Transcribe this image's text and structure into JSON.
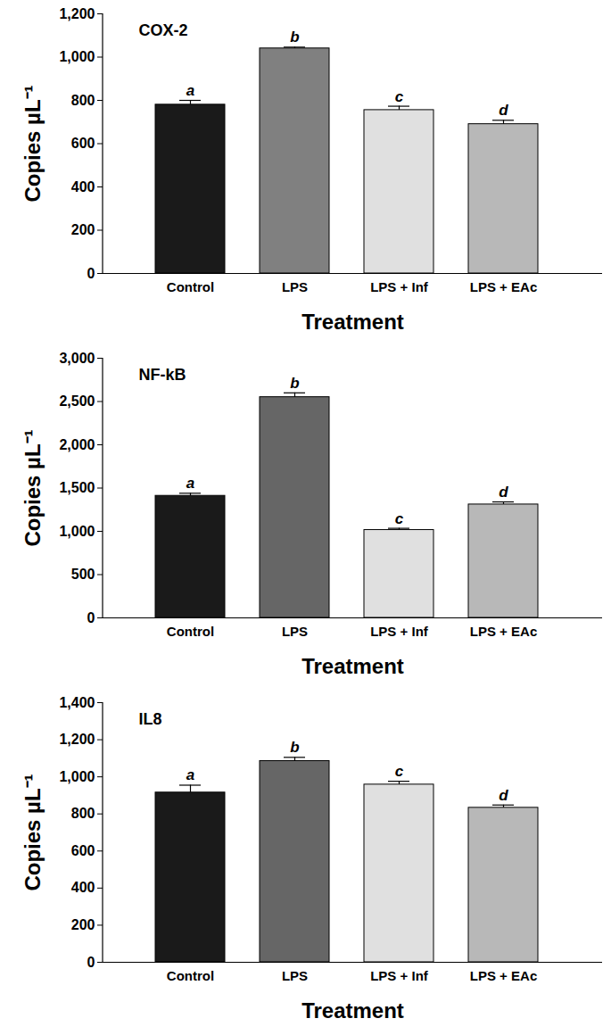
{
  "chart_data": [
    {
      "type": "bar",
      "title": "COX-2",
      "x_label": "Treatment",
      "y_label": "Copies µL⁻¹",
      "categories": [
        "Control",
        "LPS",
        "LPS + Inf",
        "LPS + EAc"
      ],
      "values": [
        780,
        1040,
        755,
        690
      ],
      "errors": [
        20,
        6,
        18,
        18
      ],
      "annotations": [
        "a",
        "b",
        "c",
        "d"
      ],
      "colors": [
        "#1a1a1a",
        "#808080",
        "#e0e0e0",
        "#b8b8b8"
      ],
      "ylim": [
        0,
        1200
      ],
      "yticks": [
        0,
        200,
        400,
        600,
        800,
        1000,
        1200
      ],
      "grid": false
    },
    {
      "type": "bar",
      "title": "NF-kB",
      "x_label": "Treatment",
      "y_label": "Copies µL⁻¹",
      "categories": [
        "Control",
        "LPS",
        "LPS + Inf",
        "LPS + EAc"
      ],
      "values": [
        1410,
        2550,
        1015,
        1310
      ],
      "errors": [
        30,
        50,
        20,
        30
      ],
      "annotations": [
        "a",
        "b",
        "c",
        "d"
      ],
      "colors": [
        "#1a1a1a",
        "#666666",
        "#e0e0e0",
        "#b8b8b8"
      ],
      "ylim": [
        0,
        3000
      ],
      "yticks": [
        0,
        500,
        1000,
        1500,
        2000,
        2500,
        3000
      ],
      "grid": false
    },
    {
      "type": "bar",
      "title": "IL8",
      "x_label": "Treatment",
      "y_label": "Copies µL⁻¹",
      "categories": [
        "Control",
        "LPS",
        "LPS + Inf",
        "LPS + EAc"
      ],
      "values": [
        915,
        1085,
        958,
        833
      ],
      "errors": [
        40,
        20,
        18,
        15
      ],
      "annotations": [
        "a",
        "b",
        "c",
        "d"
      ],
      "colors": [
        "#1a1a1a",
        "#666666",
        "#e0e0e0",
        "#b8b8b8"
      ],
      "ylim": [
        0,
        1400
      ],
      "yticks": [
        0,
        200,
        400,
        600,
        800,
        1000,
        1200,
        1400
      ],
      "grid": false
    }
  ]
}
